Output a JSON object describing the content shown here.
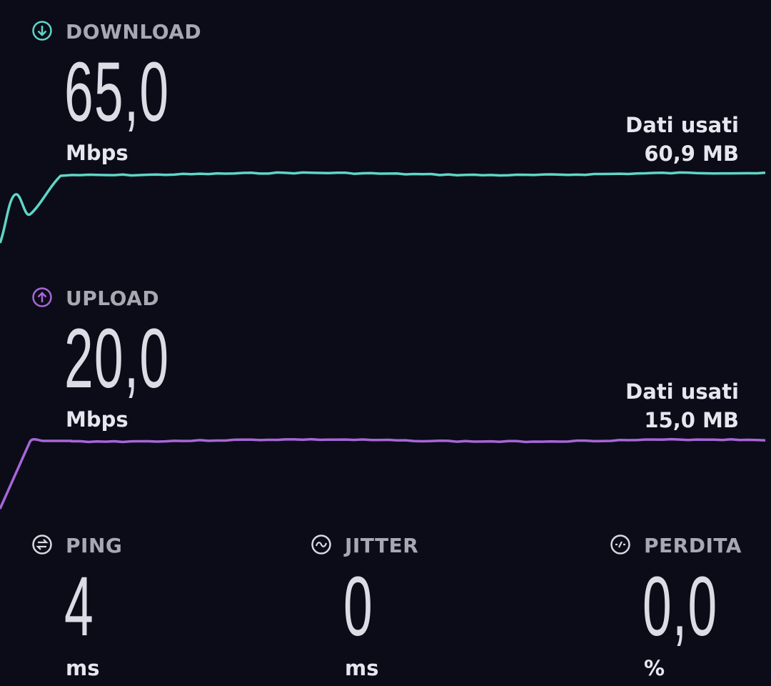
{
  "download": {
    "label": "DOWNLOAD",
    "value": "65,0",
    "unit": "Mbps",
    "data_used_label": "Dati usati",
    "data_used_value": "60,9 MB",
    "color": "#5fd6c8",
    "icon": "arrow-down-circle-icon"
  },
  "upload": {
    "label": "UPLOAD",
    "value": "20,0",
    "unit": "Mbps",
    "data_used_label": "Dati usati",
    "data_used_value": "15,0 MB",
    "color": "#a866d8",
    "icon": "arrow-up-circle-icon"
  },
  "ping": {
    "label": "PING",
    "value": "4",
    "unit": "ms",
    "icon": "ping-icon"
  },
  "jitter": {
    "label": "JITTER",
    "value": "0",
    "unit": "ms",
    "icon": "wave-icon"
  },
  "loss": {
    "label": "PERDITA",
    "value": "0,0",
    "unit": "%",
    "icon": "packet-loss-icon"
  }
}
